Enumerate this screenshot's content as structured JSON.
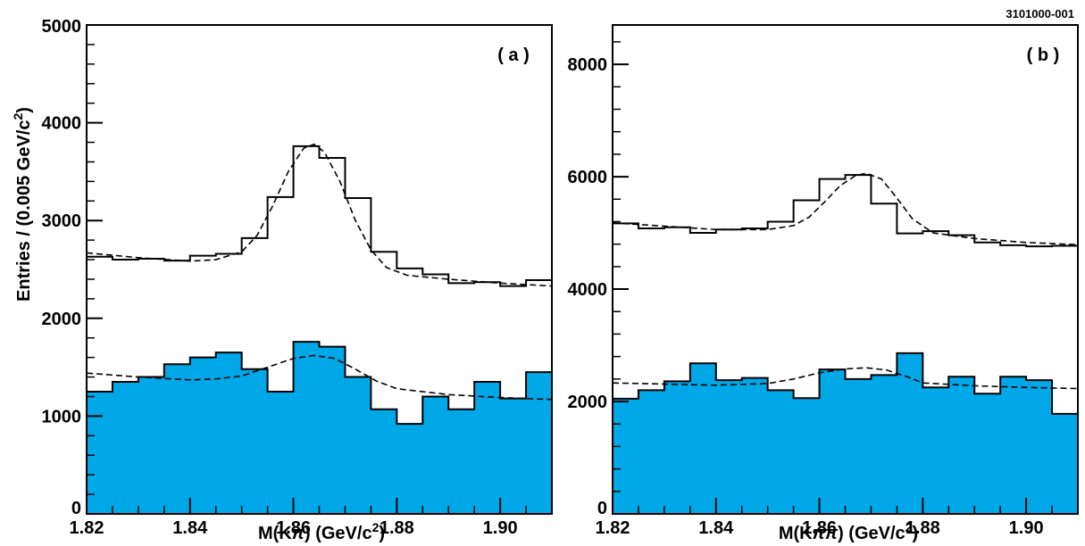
{
  "figure_id": "3101000-001",
  "colors": {
    "fill": "#00a8e8",
    "line": "#000000"
  },
  "chart_data": [
    {
      "type": "histogram",
      "panel_label": "( a )",
      "xlabel_parts": [
        "M(K",
        "π",
        ") (GeV/c",
        "2",
        ")"
      ],
      "ylabel_parts": [
        "Entries / (0.005 GeV/c",
        "2",
        ")"
      ],
      "xlim": [
        1.82,
        1.91
      ],
      "ylim": [
        0,
        5000
      ],
      "xticks": [
        1.82,
        1.84,
        1.86,
        1.88,
        1.9
      ],
      "xtick_labels": [
        "1.82",
        "1.84",
        "1.86",
        "1.88",
        "1.90"
      ],
      "yticks": [
        0,
        1000,
        2000,
        3000,
        4000,
        5000
      ],
      "ytick_labels": [
        "0",
        "1000",
        "2000",
        "3000",
        "4000",
        "5000"
      ],
      "bin_edges": [
        1.82,
        1.825,
        1.83,
        1.835,
        1.84,
        1.845,
        1.85,
        1.855,
        1.86,
        1.865,
        1.87,
        1.875,
        1.88,
        1.885,
        1.89,
        1.895,
        1.9,
        1.905,
        1.91
      ],
      "series": [
        {
          "style": "step",
          "values": [
            2630,
            2600,
            2610,
            2590,
            2640,
            2660,
            2820,
            3240,
            3760,
            3640,
            3230,
            2680,
            2510,
            2450,
            2360,
            2370,
            2330,
            2390
          ]
        },
        {
          "style": "filled",
          "values": [
            1250,
            1350,
            1400,
            1530,
            1600,
            1650,
            1480,
            1250,
            1760,
            1710,
            1400,
            1070,
            920,
            1200,
            1070,
            1350,
            1180,
            1450
          ]
        }
      ],
      "fits": [
        {
          "x": [
            1.82,
            1.83,
            1.84,
            1.845,
            1.85,
            1.853,
            1.856,
            1.859,
            1.862,
            1.864,
            1.866,
            1.869,
            1.872,
            1.875,
            1.878,
            1.882,
            1.89,
            1.9,
            1.91
          ],
          "y": [
            2670,
            2620,
            2585,
            2600,
            2680,
            2850,
            3150,
            3500,
            3740,
            3780,
            3700,
            3400,
            3000,
            2700,
            2520,
            2440,
            2400,
            2360,
            2330
          ]
        },
        {
          "x": [
            1.82,
            1.83,
            1.84,
            1.845,
            1.85,
            1.855,
            1.86,
            1.864,
            1.868,
            1.872,
            1.876,
            1.88,
            1.89,
            1.9,
            1.91
          ],
          "y": [
            1440,
            1400,
            1370,
            1380,
            1410,
            1500,
            1590,
            1620,
            1590,
            1480,
            1360,
            1280,
            1220,
            1190,
            1170
          ]
        }
      ]
    },
    {
      "type": "histogram",
      "panel_label": "( b )",
      "xlabel_parts": [
        "M(K",
        "ππ",
        ") (GeV/c",
        "2",
        ")"
      ],
      "xlim": [
        1.82,
        1.91
      ],
      "ylim": [
        0,
        8700
      ],
      "xticks": [
        1.82,
        1.84,
        1.86,
        1.88,
        1.9
      ],
      "xtick_labels": [
        "1.82",
        "1.84",
        "1.86",
        "1.88",
        "1.90"
      ],
      "yticks": [
        0,
        2000,
        4000,
        6000,
        8000
      ],
      "ytick_labels": [
        "0",
        "2000",
        "4000",
        "6000",
        "8000"
      ],
      "bin_edges": [
        1.82,
        1.825,
        1.83,
        1.835,
        1.84,
        1.845,
        1.85,
        1.855,
        1.86,
        1.865,
        1.87,
        1.875,
        1.88,
        1.885,
        1.89,
        1.895,
        1.9,
        1.905,
        1.91
      ],
      "series": [
        {
          "style": "step",
          "values": [
            5170,
            5080,
            5100,
            5000,
            5060,
            5080,
            5200,
            5580,
            5960,
            6030,
            5520,
            4990,
            5030,
            4960,
            4830,
            4780,
            4760,
            4770
          ]
        },
        {
          "style": "filled",
          "values": [
            2050,
            2200,
            2360,
            2680,
            2380,
            2420,
            2200,
            2060,
            2570,
            2400,
            2470,
            2860,
            2250,
            2440,
            2140,
            2440,
            2380,
            1780
          ]
        }
      ],
      "fits": [
        {
          "x": [
            1.82,
            1.83,
            1.84,
            1.85,
            1.855,
            1.858,
            1.861,
            1.864,
            1.867,
            1.869,
            1.872,
            1.875,
            1.878,
            1.882,
            1.89,
            1.9,
            1.91
          ],
          "y": [
            5180,
            5120,
            5060,
            5060,
            5130,
            5280,
            5550,
            5840,
            6020,
            6060,
            5960,
            5620,
            5250,
            5000,
            4900,
            4830,
            4790
          ]
        },
        {
          "x": [
            1.82,
            1.83,
            1.84,
            1.85,
            1.855,
            1.86,
            1.865,
            1.869,
            1.873,
            1.877,
            1.88,
            1.89,
            1.9,
            1.91
          ],
          "y": [
            2330,
            2310,
            2290,
            2320,
            2400,
            2510,
            2580,
            2600,
            2560,
            2440,
            2330,
            2280,
            2250,
            2230
          ]
        }
      ]
    }
  ]
}
